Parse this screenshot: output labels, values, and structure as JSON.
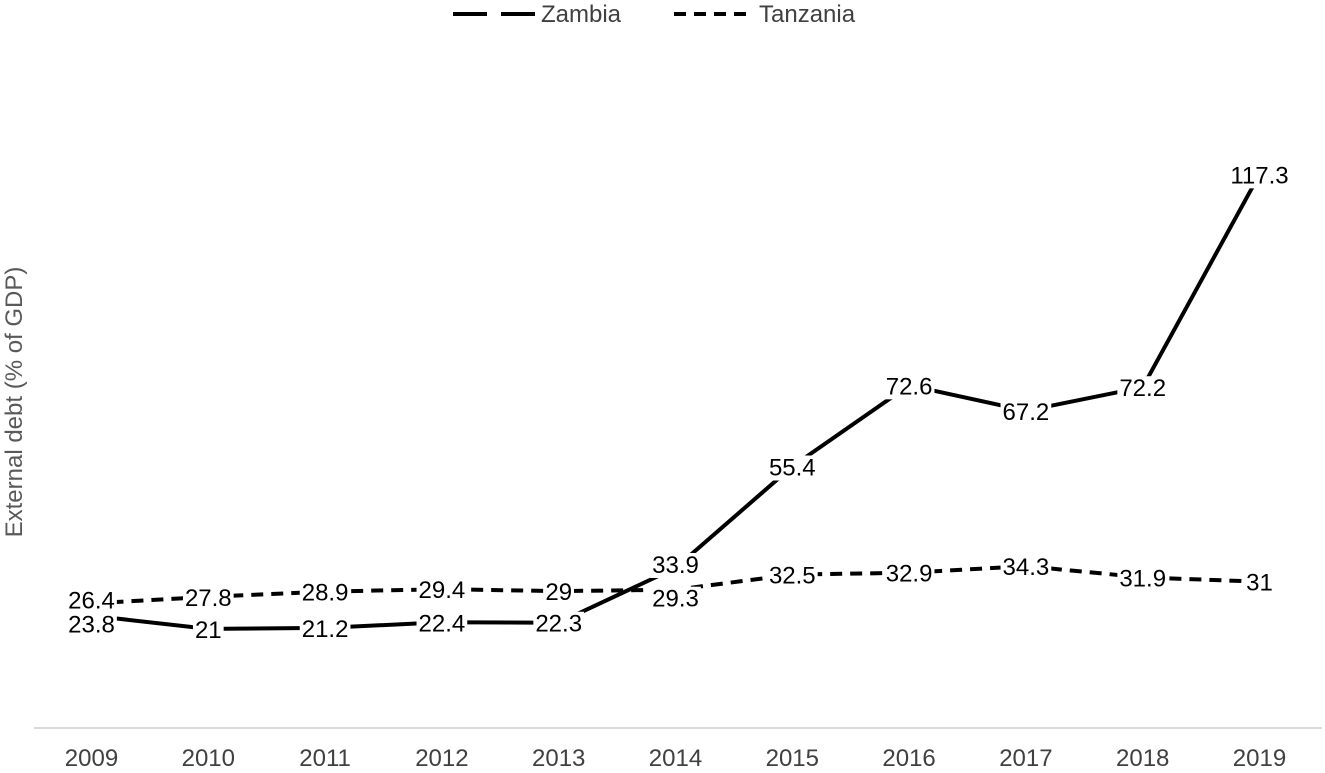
{
  "chart_data": {
    "type": "line",
    "title": "",
    "xlabel": "",
    "ylabel": "External debt (% of GDP)",
    "categories": [
      "2009",
      "2010",
      "2011",
      "2012",
      "2013",
      "2014",
      "2015",
      "2016",
      "2017",
      "2018",
      "2019"
    ],
    "ylim": [
      0,
      130
    ],
    "grid": false,
    "legend": "top",
    "series": [
      {
        "name": "Zambia",
        "dash": "long-dash",
        "color": "#000000",
        "values": [
          23.8,
          21,
          21.2,
          22.4,
          22.3,
          33.9,
          55.4,
          72.6,
          67.2,
          72.2,
          117.3
        ],
        "labels": [
          "23.8",
          "21",
          "21.2",
          "22.4",
          "22.3",
          "33.9",
          "55.4",
          "72.6",
          "67.2",
          "72.2",
          "117.3"
        ]
      },
      {
        "name": "Tanzania",
        "dash": "short-dash",
        "color": "#000000",
        "values": [
          26.4,
          27.8,
          28.9,
          29.4,
          29,
          29.3,
          32.5,
          32.9,
          34.3,
          31.9,
          31
        ],
        "labels": [
          "26.4",
          "27.8",
          "28.9",
          "29.4",
          "29",
          "29.3",
          "32.5",
          "32.9",
          "34.3",
          "31.9",
          "31"
        ]
      }
    ]
  }
}
